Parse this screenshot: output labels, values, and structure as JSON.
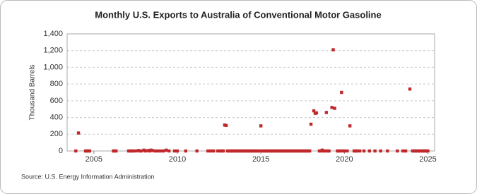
{
  "chart_data": {
    "type": "scatter",
    "title": "Monthly U.S. Exports to Australia of Conventional Motor Gasoline",
    "y_label": "Thousand Barrels",
    "source": "Source: U.S. Energy Information Administration",
    "color": "#c0282c",
    "grid": true,
    "xlim": [
      2003.4,
      2025.4
    ],
    "xticks": [
      2005,
      2010,
      2015,
      2020,
      2025
    ],
    "ylim": [
      0,
      1400
    ],
    "yticks": [
      0,
      200,
      400,
      600,
      800,
      {
        "value": 1000,
        "label": "1,000"
      },
      {
        "value": 1200,
        "label": "1,200"
      },
      {
        "value": 1400,
        "label": "1,400"
      }
    ],
    "x": [
      2003.92,
      2004.08,
      2004.5,
      2004.58,
      2004.67,
      2004.75,
      2006.17,
      2006.25,
      2006.33,
      2007.08,
      2007.17,
      2007.25,
      2007.33,
      2007.5,
      2007.67,
      2007.75,
      2007.83,
      2008.0,
      2008.08,
      2008.25,
      2008.33,
      2008.42,
      2008.5,
      2008.67,
      2008.83,
      2009.0,
      2009.17,
      2009.33,
      2009.5,
      2009.83,
      2010.0,
      2010.5,
      2011.17,
      2011.83,
      2012.0,
      2012.17,
      2012.42,
      2012.58,
      2012.67,
      2012.75,
      2012.83,
      2012.92,
      2013.0,
      2013.08,
      2013.17,
      2013.25,
      2013.33,
      2013.42,
      2013.5,
      2013.58,
      2013.67,
      2013.75,
      2013.83,
      2013.92,
      2014.0,
      2014.08,
      2014.17,
      2014.25,
      2014.33,
      2014.42,
      2014.5,
      2014.58,
      2014.67,
      2014.75,
      2014.83,
      2014.92,
      2015.0,
      2015.08,
      2015.17,
      2015.25,
      2015.33,
      2015.42,
      2015.5,
      2015.58,
      2015.67,
      2015.75,
      2015.83,
      2015.92,
      2016.0,
      2016.08,
      2016.17,
      2016.25,
      2016.33,
      2016.42,
      2016.5,
      2016.58,
      2016.67,
      2016.75,
      2016.83,
      2016.92,
      2017.0,
      2017.08,
      2017.17,
      2017.25,
      2017.33,
      2017.42,
      2017.5,
      2017.58,
      2017.67,
      2017.75,
      2017.83,
      2017.92,
      2018.0,
      2018.17,
      2018.25,
      2018.33,
      2018.5,
      2018.58,
      2018.67,
      2018.75,
      2018.83,
      2018.92,
      2019.0,
      2019.08,
      2019.25,
      2019.33,
      2019.42,
      2019.58,
      2019.67,
      2019.75,
      2019.83,
      2019.92,
      2020.0,
      2020.17,
      2020.33,
      2020.58,
      2020.67,
      2020.75,
      2020.92,
      2021.17,
      2021.5,
      2021.83,
      2022.17,
      2022.58,
      2023.17,
      2023.5,
      2023.67,
      2023.92,
      2024.08,
      2024.17,
      2024.25,
      2024.33,
      2024.42,
      2024.5,
      2024.58,
      2024.67,
      2024.75,
      2024.83,
      2024.92,
      2025.0
    ],
    "values": [
      0,
      215,
      0,
      0,
      0,
      0,
      0,
      0,
      0,
      0,
      0,
      0,
      0,
      0,
      5,
      0,
      0,
      10,
      0,
      5,
      0,
      10,
      5,
      0,
      0,
      0,
      0,
      10,
      0,
      0,
      0,
      0,
      0,
      0,
      0,
      0,
      0,
      0,
      0,
      0,
      310,
      305,
      0,
      0,
      0,
      0,
      0,
      0,
      0,
      0,
      0,
      0,
      0,
      0,
      0,
      0,
      0,
      0,
      0,
      0,
      0,
      0,
      0,
      0,
      0,
      0,
      300,
      0,
      0,
      0,
      0,
      0,
      0,
      0,
      0,
      0,
      0,
      0,
      0,
      0,
      0,
      0,
      0,
      0,
      0,
      0,
      0,
      0,
      0,
      0,
      0,
      0,
      0,
      0,
      0,
      0,
      0,
      0,
      0,
      0,
      0,
      0,
      320,
      480,
      450,
      455,
      0,
      0,
      10,
      0,
      0,
      460,
      0,
      0,
      520,
      1210,
      510,
      0,
      0,
      0,
      700,
      0,
      0,
      0,
      300,
      0,
      0,
      0,
      0,
      0,
      0,
      0,
      0,
      0,
      0,
      0,
      0,
      740,
      0,
      0,
      0,
      0,
      0,
      0,
      0,
      0,
      0,
      0,
      0,
      0
    ]
  }
}
